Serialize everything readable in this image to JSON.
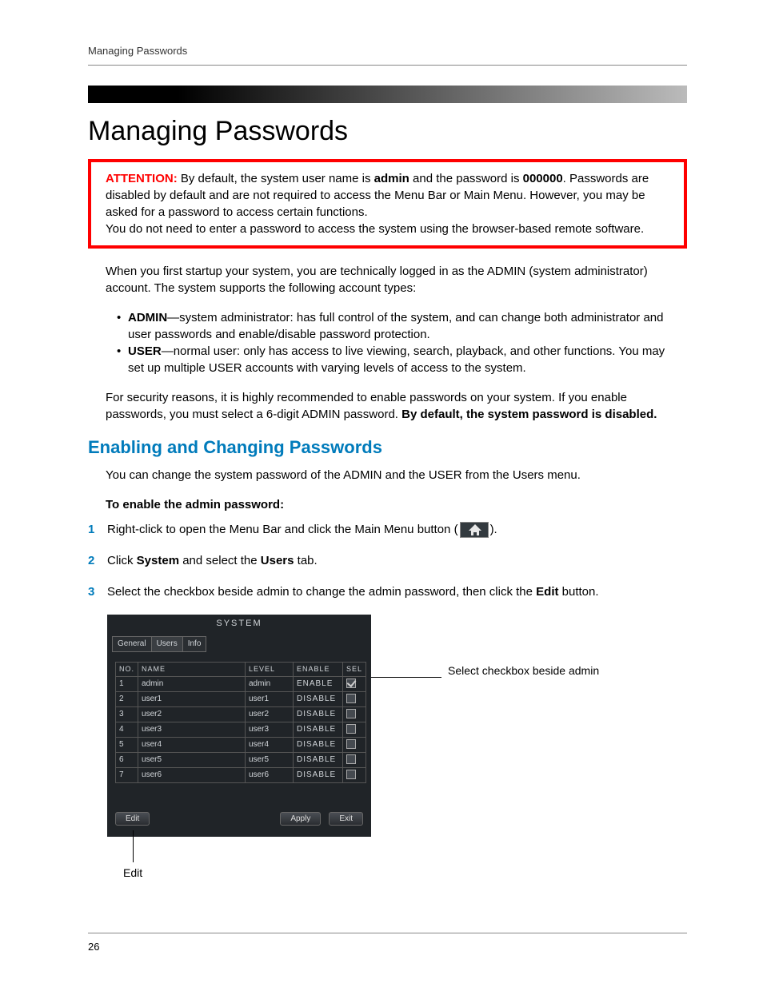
{
  "page": {
    "running_header": "Managing Passwords",
    "page_number": "26"
  },
  "title": "Managing Passwords",
  "attention": {
    "label": "ATTENTION:",
    "t1": " By default, the system user name is ",
    "b1": "admin",
    "t2": " and the password is ",
    "b2": "000000",
    "t3": ". Passwords are disabled by default and are not required to access the Menu Bar or Main Menu. However, you may be asked for a password to access certain functions.",
    "line2": "You do not need to enter a password to access the system using the browser-based remote software."
  },
  "intro": "When you first startup your system, you are technically logged in as the ADMIN (system administrator) account. The system supports the following account types:",
  "bullets": [
    {
      "bold": "ADMIN",
      "rest": "—system administrator: has full control of the system, and can change both administrator and user passwords and enable/disable password protection."
    },
    {
      "bold": "USER",
      "rest": "—normal user: only has access to live viewing, search, playback, and other functions. You may set up multiple USER accounts with varying levels of access to the system."
    }
  ],
  "security_p1": "For security reasons, it is highly recommended to enable passwords on your system. If you enable passwords, you must select a 6-digit ADMIN password. ",
  "security_b": "By default, the system password is disabled.",
  "section_heading": "Enabling and Changing Passwords",
  "section_intro": "You can change the system password of the ADMIN and the USER from the Users menu.",
  "to_enable": "To enable the admin password:",
  "steps": {
    "s1a": "Right-click to open the Menu Bar and click the Main Menu button (",
    "s1b": ").",
    "s2a": "Click ",
    "s2b1": "System",
    "s2c": " and select the ",
    "s2b2": "Users",
    "s2d": " tab.",
    "s3a": "Select the checkbox beside admin to change the admin password, then click the ",
    "s3b": "Edit",
    "s3c": " button."
  },
  "dialog": {
    "title": "SYSTEM",
    "tabs": [
      "General",
      "Users",
      "Info"
    ],
    "active_tab": 1,
    "columns": [
      "NO.",
      "NAME",
      "LEVEL",
      "ENABLE",
      "SEL"
    ],
    "rows": [
      {
        "no": "1",
        "name": "admin",
        "level": "admin",
        "enable": "ENABLE",
        "sel": true
      },
      {
        "no": "2",
        "name": "user1",
        "level": "user1",
        "enable": "DISABLE",
        "sel": false
      },
      {
        "no": "3",
        "name": "user2",
        "level": "user2",
        "enable": "DISABLE",
        "sel": false
      },
      {
        "no": "4",
        "name": "user3",
        "level": "user3",
        "enable": "DISABLE",
        "sel": false
      },
      {
        "no": "5",
        "name": "user4",
        "level": "user4",
        "enable": "DISABLE",
        "sel": false
      },
      {
        "no": "6",
        "name": "user5",
        "level": "user5",
        "enable": "DISABLE",
        "sel": false
      },
      {
        "no": "7",
        "name": "user6",
        "level": "user6",
        "enable": "DISABLE",
        "sel": false
      }
    ],
    "buttons": {
      "edit": "Edit",
      "apply": "Apply",
      "exit": "Exit"
    }
  },
  "callouts": {
    "right": "Select checkbox beside admin",
    "edit": "Edit"
  },
  "colors": {
    "accent_blue": "#007bbb",
    "attention_red": "#ff0000",
    "dialog_bg": "#202428",
    "dialog_text": "#d0d4d8"
  }
}
